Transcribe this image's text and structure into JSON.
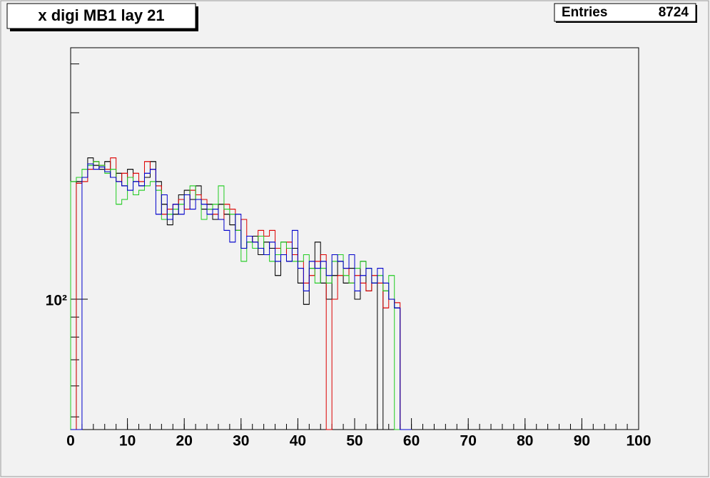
{
  "chart_data": {
    "type": "histogram",
    "title": "x digi MB1 lay 21",
    "stats": {
      "label": "Entries",
      "value": 8724
    },
    "log_y": true,
    "xlim": [
      0,
      100
    ],
    "xticks": [
      0,
      10,
      20,
      30,
      40,
      50,
      60,
      70,
      80,
      90,
      100
    ],
    "x_minor_step": 2,
    "ylim": [
      46.4,
      440
    ],
    "yticks": [
      {
        "value": 100,
        "label": "10²"
      }
    ],
    "y_minor_ticks": [
      50,
      60,
      70,
      80,
      90,
      200,
      300,
      400
    ],
    "bins": [
      0,
      1,
      2,
      3,
      4,
      5,
      6,
      7,
      8,
      9,
      10,
      11,
      12,
      13,
      14,
      15,
      16,
      17,
      18,
      19,
      20,
      21,
      22,
      23,
      24,
      25,
      26,
      27,
      28,
      29,
      30,
      31,
      32,
      33,
      34,
      35,
      36,
      37,
      38,
      39,
      40,
      41,
      42,
      43,
      44,
      45,
      46,
      47,
      48,
      49,
      50,
      51,
      52,
      53,
      54,
      55,
      56,
      57,
      58,
      59,
      60
    ],
    "series": [
      {
        "name": "black",
        "color": "#000000",
        "values": [
          0,
          200,
          205,
          230,
          220,
          215,
          225,
          205,
          210,
          195,
          215,
          200,
          195,
          205,
          225,
          200,
          175,
          155,
          165,
          185,
          190,
          180,
          195,
          170,
          175,
          160,
          175,
          165,
          155,
          150,
          135,
          140,
          145,
          130,
          140,
          135,
          115,
          140,
          125,
          135,
          110,
          97,
          120,
          140,
          110,
          100,
          115,
          125,
          110,
          120,
          100,
          125,
          105,
          110,
          0,
          105,
          100,
          95,
          0,
          0
        ]
      },
      {
        "name": "red",
        "color": "#dd0000",
        "values": [
          0,
          198,
          200,
          215,
          225,
          220,
          215,
          230,
          200,
          210,
          205,
          210,
          200,
          225,
          215,
          195,
          165,
          170,
          175,
          180,
          170,
          190,
          185,
          180,
          170,
          165,
          160,
          175,
          170,
          150,
          160,
          145,
          140,
          150,
          145,
          150,
          135,
          130,
          140,
          130,
          125,
          110,
          115,
          125,
          130,
          0,
          100,
          115,
          120,
          110,
          115,
          110,
          105,
          115,
          110,
          95,
          100,
          98,
          0,
          0
        ]
      },
      {
        "name": "green",
        "color": "#22cc22",
        "values": [
          200,
          205,
          215,
          220,
          225,
          220,
          210,
          215,
          175,
          180,
          205,
          185,
          190,
          195,
          200,
          190,
          160,
          165,
          170,
          175,
          185,
          195,
          180,
          160,
          170,
          175,
          195,
          170,
          165,
          150,
          125,
          140,
          135,
          145,
          130,
          125,
          130,
          140,
          135,
          125,
          125,
          130,
          120,
          110,
          120,
          110,
          125,
          130,
          115,
          110,
          120,
          125,
          120,
          110,
          115,
          105,
          115,
          0,
          0,
          0
        ]
      },
      {
        "name": "blue",
        "color": "#0000cc",
        "values": [
          0,
          0,
          205,
          222,
          215,
          218,
          212,
          205,
          200,
          195,
          190,
          200,
          195,
          210,
          215,
          165,
          185,
          160,
          175,
          165,
          185,
          170,
          180,
          175,
          165,
          170,
          160,
          150,
          140,
          165,
          135,
          145,
          140,
          135,
          130,
          140,
          125,
          130,
          125,
          150,
          120,
          105,
          125,
          120,
          125,
          115,
          130,
          125,
          120,
          130,
          105,
          115,
          120,
          110,
          120,
          110,
          100,
          95,
          0,
          0
        ]
      }
    ]
  }
}
